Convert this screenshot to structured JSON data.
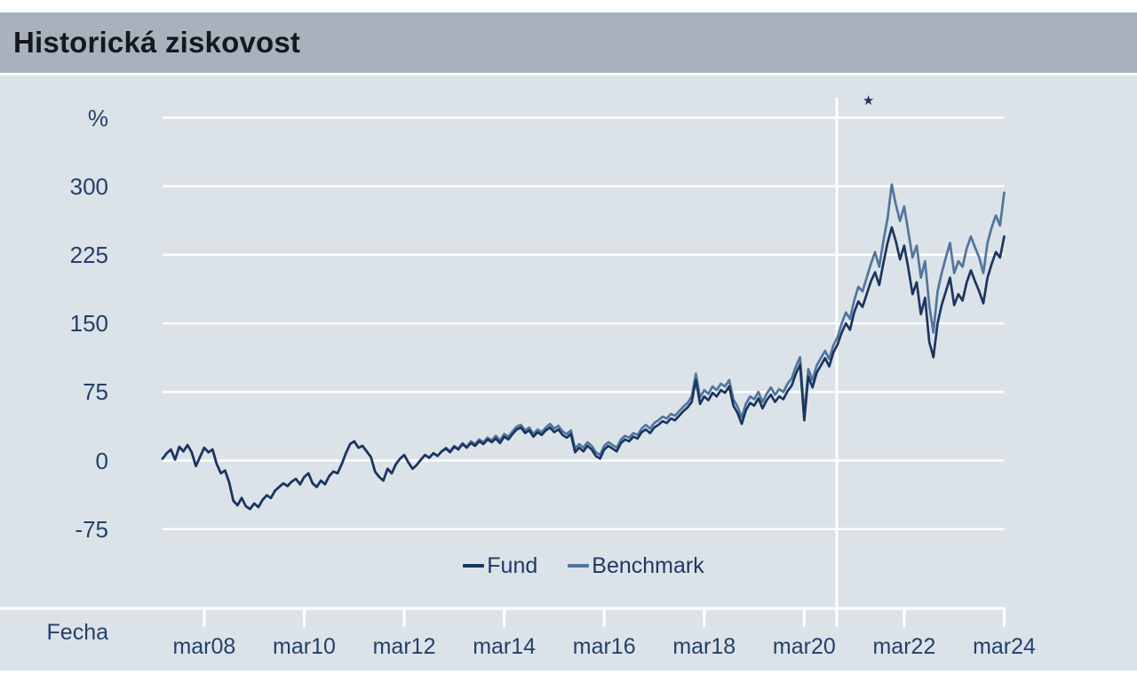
{
  "title_bar": {
    "title": "Historická ziskovost"
  },
  "colors": {
    "title_bar_bg": "#a7b2bd",
    "chart_bg": "#dce3e8",
    "grid": "#ffffff",
    "axis_text": "#23406b",
    "fund_line": "#1b3560",
    "benchmark_line": "#50759f"
  },
  "chart_data": {
    "type": "line",
    "title": "Historická ziskovost",
    "x_axis_label": "Fecha",
    "y_unit_label": "%",
    "frequency": "monthly",
    "x_range": "2007-05 to 2024-03",
    "ylim": [
      -75,
      375
    ],
    "grid": true,
    "legend_position": "bottom-center",
    "y_axis": {
      "labels": [
        {
          "text": "%",
          "value": 375
        },
        {
          "text": "300",
          "value": 300
        },
        {
          "text": "225",
          "value": 225
        },
        {
          "text": "150",
          "value": 150
        },
        {
          "text": "75",
          "value": 75
        },
        {
          "text": "0",
          "value": 0
        },
        {
          "text": "-75",
          "value": -75
        }
      ]
    },
    "x_ticks": [
      {
        "label": "mar08",
        "month_index": 10
      },
      {
        "label": "mar10",
        "month_index": 34
      },
      {
        "label": "mar12",
        "month_index": 58
      },
      {
        "label": "mar14",
        "month_index": 82
      },
      {
        "label": "mar16",
        "month_index": 106
      },
      {
        "label": "mar18",
        "month_index": 130
      },
      {
        "label": "mar20",
        "month_index": 154
      },
      {
        "label": "mar22",
        "month_index": 178
      },
      {
        "label": "mar24",
        "month_index": 202
      }
    ],
    "annotation": {
      "symbol": "★",
      "line_month_index": 161.8,
      "star_month_index": 169.4,
      "description_visible": false
    },
    "legend": [
      {
        "label": "Fund",
        "color": "#1b3560"
      },
      {
        "label": "Benchmark",
        "color": "#50759f"
      }
    ],
    "series": [
      {
        "name": "Fund",
        "color": "#1b3560",
        "values": [
          2,
          8,
          12,
          1,
          15,
          10,
          17,
          9,
          -6,
          4,
          14,
          9,
          12,
          -4,
          -14,
          -11,
          -24,
          -44,
          -49,
          -41,
          -50,
          -53,
          -47,
          -51,
          -43,
          -38,
          -41,
          -33,
          -29,
          -25,
          -28,
          -23,
          -20,
          -26,
          -18,
          -14,
          -25,
          -29,
          -22,
          -26,
          -17,
          -12,
          -14,
          -4,
          8,
          18,
          21,
          14,
          16,
          10,
          4,
          -12,
          -18,
          -22,
          -9,
          -14,
          -4,
          2,
          6,
          -2,
          -9,
          -5,
          1,
          6,
          3,
          8,
          5,
          10,
          13,
          9,
          15,
          12,
          18,
          14,
          19,
          16,
          21,
          18,
          23,
          20,
          24,
          19,
          26,
          23,
          29,
          34,
          36,
          30,
          33,
          26,
          31,
          28,
          33,
          36,
          31,
          34,
          28,
          25,
          29,
          9,
          14,
          10,
          16,
          12,
          5,
          2,
          12,
          16,
          13,
          10,
          19,
          23,
          21,
          26,
          24,
          31,
          34,
          30,
          36,
          39,
          43,
          41,
          46,
          44,
          49,
          54,
          58,
          64,
          88,
          62,
          70,
          66,
          74,
          70,
          77,
          74,
          81,
          60,
          52,
          40,
          55,
          63,
          60,
          68,
          57,
          66,
          72,
          64,
          70,
          67,
          76,
          82,
          95,
          105,
          44,
          92,
          80,
          96,
          104,
          112,
          103,
          118,
          127,
          140,
          150,
          143,
          162,
          174,
          168,
          182,
          196,
          206,
          192,
          216,
          238,
          255,
          240,
          220,
          235,
          210,
          182,
          195,
          160,
          178,
          130,
          113,
          150,
          170,
          185,
          200,
          170,
          182,
          175,
          195,
          208,
          196,
          185,
          172,
          200,
          215,
          228,
          222,
          245
        ]
      },
      {
        "name": "Benchmark",
        "color": "#50759f",
        "values": [
          2,
          8,
          12,
          1,
          15,
          10,
          17,
          9,
          -6,
          4,
          14,
          9,
          12,
          -4,
          -14,
          -11,
          -24,
          -44,
          -49,
          -41,
          -50,
          -53,
          -47,
          -51,
          -43,
          -38,
          -41,
          -33,
          -29,
          -25,
          -28,
          -23,
          -20,
          -26,
          -18,
          -14,
          -25,
          -29,
          -22,
          -26,
          -17,
          -12,
          -14,
          -4,
          8,
          18,
          21,
          14,
          16,
          10,
          4,
          -12,
          -18,
          -22,
          -9,
          -14,
          -4,
          2,
          6,
          -2,
          -9,
          -5,
          1,
          6,
          3,
          8,
          5,
          10,
          14,
          10,
          16,
          13,
          19,
          15,
          21,
          18,
          23,
          20,
          25,
          22,
          27,
          22,
          29,
          26,
          32,
          37,
          39,
          33,
          36,
          29,
          34,
          31,
          36,
          40,
          35,
          38,
          32,
          29,
          33,
          13,
          18,
          14,
          20,
          16,
          9,
          6,
          16,
          20,
          17,
          14,
          23,
          27,
          25,
          30,
          28,
          35,
          39,
          35,
          41,
          44,
          48,
          46,
          51,
          49,
          54,
          59,
          63,
          70,
          95,
          69,
          77,
          73,
          81,
          77,
          84,
          81,
          88,
          67,
          59,
          47,
          62,
          70,
          67,
          75,
          64,
          73,
          80,
          72,
          78,
          75,
          84,
          90,
          103,
          113,
          50,
          100,
          88,
          104,
          112,
          120,
          111,
          126,
          135,
          150,
          162,
          155,
          175,
          190,
          185,
          200,
          215,
          228,
          212,
          240,
          265,
          302,
          280,
          262,
          278,
          250,
          222,
          235,
          200,
          218,
          170,
          140,
          185,
          205,
          222,
          238,
          205,
          218,
          212,
          232,
          245,
          233,
          222,
          205,
          238,
          255,
          268,
          257,
          293
        ]
      }
    ]
  }
}
